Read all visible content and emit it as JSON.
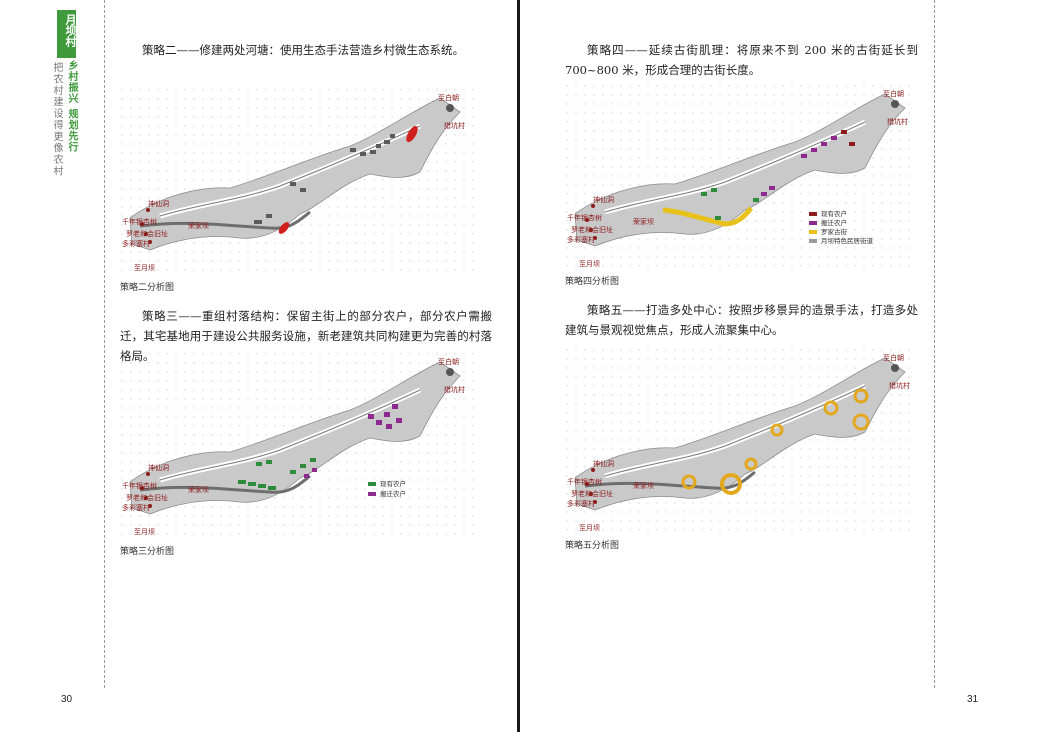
{
  "left": {
    "side_tab": "月坝村",
    "vertical_green": "乡村振兴 规划先行",
    "vertical_gray": "把农村建设得更像农村",
    "strategy2": "策略二——修建两处河塘：使用生态手法营造乡村微生态系统。",
    "caption2": "策略二分析图",
    "strategy3": "策略三——重组村落结构：保留主街上的部分农户，部分农户需搬迁，其宅基地用于建设公共服务设施，新老建筑共同构建更为完善的村落格局。",
    "caption3": "策略三分析图",
    "page_number": "30"
  },
  "right": {
    "strategy4": "策略四——延续古街肌理：将原来不到 200 米的古街延长到 700~800 米，形成合理的古街长度。",
    "caption4": "策略四分析图",
    "strategy5": "策略五——打造多处中心：按照步移景异的造景手法，打造多处建筑与景观视觉焦点，形成人流聚集中心。",
    "caption5": "策略五分析图",
    "page_number": "31"
  },
  "maps": {
    "place_labels": [
      "至白朝",
      "猎坑村",
      "神仙洞",
      "千年银杏树",
      "罗老和会旧址",
      "多彩塞村",
      "荣家坝",
      "至月坝"
    ],
    "legend3": [
      "现有农户",
      "搬迁农户"
    ],
    "legend4": [
      "现有农户",
      "搬迁农户",
      "罗家古街",
      "月坝特色民居街道"
    ]
  },
  "colors": {
    "brand_green": "#3e9a3a",
    "pond_red": "#d0201d",
    "existing_green": "#2e8b3c",
    "relocate_purple": "#8e2a8e",
    "street_yellow": "#e8c21a",
    "center_gold": "#e3a81d"
  }
}
